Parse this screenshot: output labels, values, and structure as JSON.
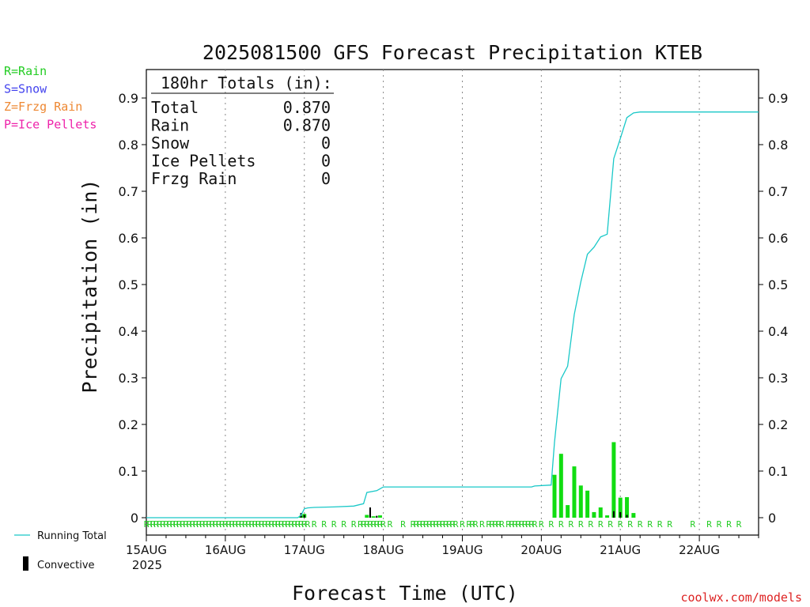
{
  "chart_data": {
    "type": "bar",
    "title": "2025081500 GFS Forecast Precipitation KTEB",
    "xlabel": "Forecast Time (UTC)",
    "ylabel": "Precipitation (in)",
    "ylim": [
      0,
      0.95
    ],
    "y_ticks": [
      0,
      0.1,
      0.2,
      0.3,
      0.4,
      0.5,
      0.6,
      0.7,
      0.8,
      0.9
    ],
    "y_tick_labels": [
      "0",
      "0.1",
      "0.2",
      "0.3",
      "0.4",
      "0.5",
      "0.6",
      "0.7",
      "0.8",
      "0.9"
    ],
    "xlim_hours": [
      0,
      186
    ],
    "x_ticks": [
      {
        "hour": 0,
        "label": "15AUG"
      },
      {
        "hour": 24,
        "label": "16AUG"
      },
      {
        "hour": 48,
        "label": "17AUG"
      },
      {
        "hour": 72,
        "label": "18AUG"
      },
      {
        "hour": 96,
        "label": "19AUG"
      },
      {
        "hour": 120,
        "label": "20AUG"
      },
      {
        "hour": 144,
        "label": "21AUG"
      },
      {
        "hour": 168,
        "label": "22AUG"
      }
    ],
    "start_year_label": "2025",
    "grid": "vertical dotted",
    "series": [
      {
        "name": "Running Total",
        "type": "step-line",
        "color": "#19c8c8",
        "points": [
          [
            0,
            0
          ],
          [
            46,
            0
          ],
          [
            47,
            0.005
          ],
          [
            48,
            0.019
          ],
          [
            49,
            0.021
          ],
          [
            51,
            0.022
          ],
          [
            57,
            0.023
          ],
          [
            63,
            0.025
          ],
          [
            66,
            0.03
          ],
          [
            67,
            0.054
          ],
          [
            70,
            0.058
          ],
          [
            71,
            0.062
          ],
          [
            72,
            0.066
          ],
          [
            117,
            0.066
          ],
          [
            118,
            0.068
          ],
          [
            123,
            0.07
          ],
          [
            124,
            0.162
          ],
          [
            126,
            0.298
          ],
          [
            128,
            0.325
          ],
          [
            130,
            0.436
          ],
          [
            132,
            0.506
          ],
          [
            134,
            0.565
          ],
          [
            136,
            0.58
          ],
          [
            138,
            0.602
          ],
          [
            140,
            0.608
          ],
          [
            142,
            0.77
          ],
          [
            144,
            0.813
          ],
          [
            146,
            0.858
          ],
          [
            148,
            0.868
          ],
          [
            150,
            0.87
          ],
          [
            186,
            0.87
          ]
        ]
      },
      {
        "name": "Rain",
        "type": "bar",
        "color": "#11dd11",
        "bars": [
          [
            47,
            0.004
          ],
          [
            48,
            0.008
          ],
          [
            67,
            0.006
          ],
          [
            69,
            0.003
          ],
          [
            71,
            0.005
          ],
          [
            124,
            0.092
          ],
          [
            126,
            0.137
          ],
          [
            128,
            0.027
          ],
          [
            130,
            0.11
          ],
          [
            132,
            0.069
          ],
          [
            134,
            0.058
          ],
          [
            136,
            0.012
          ],
          [
            138,
            0.022
          ],
          [
            140,
            0.005
          ],
          [
            142,
            0.162
          ],
          [
            144,
            0.043
          ],
          [
            146,
            0.044
          ],
          [
            148,
            0.01
          ]
        ]
      },
      {
        "name": "Convective",
        "type": "bar",
        "color": "#000000",
        "bars": [
          [
            47,
            0.01
          ],
          [
            48,
            0.006
          ],
          [
            68,
            0.022
          ],
          [
            70,
            0.004
          ],
          [
            142,
            0.014
          ],
          [
            144,
            0.012
          ],
          [
            146,
            0.006
          ]
        ]
      }
    ],
    "ptype_row": {
      "label_char": "R",
      "hours": [
        0,
        1,
        2,
        3,
        4,
        5,
        6,
        7,
        8,
        9,
        10,
        11,
        12,
        13,
        14,
        15,
        16,
        17,
        18,
        19,
        20,
        21,
        22,
        23,
        24,
        25,
        26,
        27,
        28,
        29,
        30,
        31,
        32,
        33,
        34,
        35,
        36,
        37,
        38,
        39,
        40,
        41,
        42,
        43,
        44,
        45,
        46,
        47,
        48,
        49,
        51,
        54,
        57,
        60,
        63,
        65,
        66,
        67,
        68,
        69,
        70,
        71,
        72,
        74,
        78,
        81,
        82,
        83,
        84,
        85,
        86,
        87,
        88,
        89,
        90,
        91,
        92,
        93,
        94,
        96,
        98,
        99,
        100,
        102,
        104,
        105,
        106,
        107,
        108,
        110,
        111,
        112,
        113,
        114,
        115,
        116,
        117,
        118,
        120,
        123,
        126,
        129,
        132,
        135,
        138,
        141,
        144,
        147,
        150,
        153,
        156,
        159,
        166,
        171,
        174,
        177,
        180
      ]
    },
    "ptype_legend": [
      {
        "text": "R=Rain",
        "color": "#22cc22"
      },
      {
        "text": "S=Snow",
        "color": "#4444ee"
      },
      {
        "text": "Z=Frzg Rain",
        "color": "#ee8833"
      },
      {
        "text": "P=Ice Pellets",
        "color": "#ee22aa"
      }
    ],
    "totals_box": {
      "header": "180hr Totals (in):",
      "rows": [
        {
          "label": "Total",
          "value": "0.870"
        },
        {
          "label": "Rain",
          "value": "0.870"
        },
        {
          "label": "Snow",
          "value": "0"
        },
        {
          "label": "Ice Pellets",
          "value": "0"
        },
        {
          "label": "Frzg Rain",
          "value": "0"
        }
      ]
    },
    "bottom_legend": {
      "running_total": "Running Total",
      "convective": "Convective"
    },
    "credit": "coolwx.com/models"
  }
}
